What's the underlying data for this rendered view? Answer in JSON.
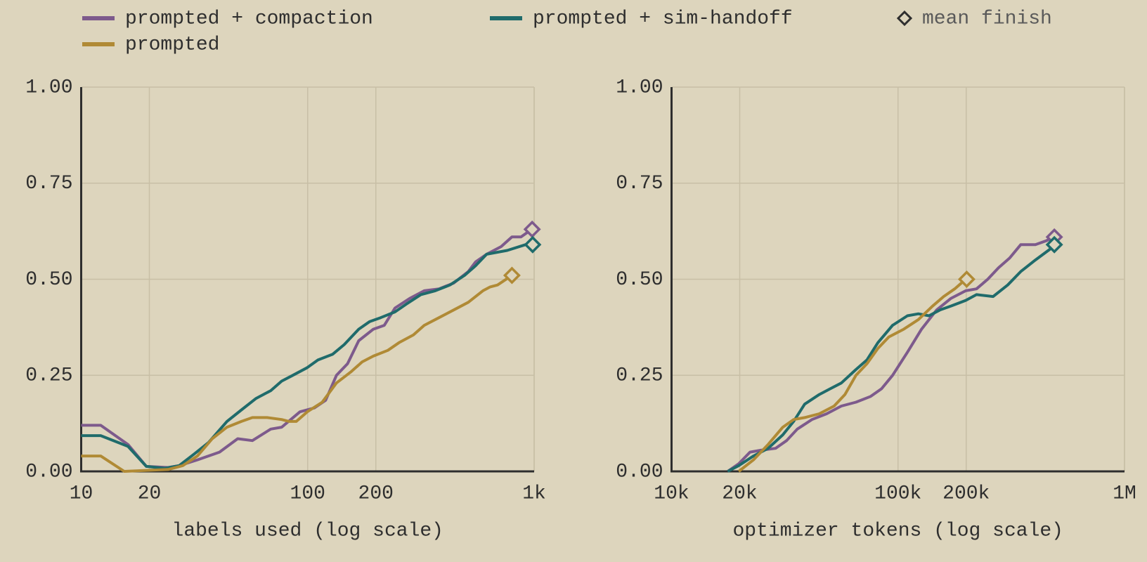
{
  "chart_data": [
    {
      "type": "line",
      "xscale": "log",
      "grid": true,
      "legend": "top",
      "marker_label": "mean finish",
      "xlabel": "labels used (log scale)",
      "xlim": [
        10,
        1000
      ],
      "ylim": [
        0,
        1
      ],
      "xticks": [
        10,
        20,
        100,
        200,
        {
          "value": 1000,
          "label": "1k"
        }
      ],
      "yticks": [
        {
          "value": 0,
          "label": "0.00"
        },
        {
          "value": 0.25,
          "label": "0.25"
        },
        {
          "value": 0.5,
          "label": "0.50"
        },
        {
          "value": 0.75,
          "label": "0.75"
        },
        {
          "value": 1,
          "label": "1.00"
        }
      ],
      "series": [
        {
          "name": "prompted + compaction",
          "color": "#7d5a8c",
          "x": [
            10,
            12.2,
            16.1,
            19.4,
            24.2,
            27.1,
            32.6,
            40.8,
            49.1,
            57,
            68.7,
            76.8,
            92.5,
            107,
            120,
            134,
            150,
            168,
            195,
            218,
            243,
            282,
            327,
            380,
            441,
            512,
            551,
            617,
            715,
            798,
            875,
            977
          ],
          "values": [
            0.12,
            0.12,
            0.07,
            0.013,
            0.01,
            0.015,
            0.03,
            0.05,
            0.085,
            0.08,
            0.11,
            0.115,
            0.155,
            0.165,
            0.185,
            0.25,
            0.28,
            0.34,
            0.37,
            0.38,
            0.425,
            0.45,
            0.47,
            0.475,
            0.49,
            0.52,
            0.545,
            0.565,
            0.585,
            0.61,
            0.61,
            0.63
          ],
          "finish": {
            "x": 980,
            "y": 0.63
          }
        },
        {
          "name": "prompted + sim-handoff",
          "color": "#1f6b6b",
          "x": [
            10,
            12.2,
            16.1,
            19.4,
            23.4,
            27.1,
            31.5,
            36.5,
            44,
            51,
            59.2,
            68.7,
            76.8,
            85.9,
            99.6,
            111,
            129,
            145,
            168,
            188,
            210,
            243,
            272,
            316,
            366,
            425,
            493,
            551,
            617,
            760,
            915,
            985
          ],
          "values": [
            0.093,
            0.093,
            0.065,
            0.013,
            0.008,
            0.015,
            0.045,
            0.075,
            0.13,
            0.16,
            0.19,
            0.21,
            0.235,
            0.25,
            0.27,
            0.29,
            0.305,
            0.33,
            0.37,
            0.39,
            0.4,
            0.415,
            0.435,
            0.46,
            0.47,
            0.485,
            0.51,
            0.535,
            0.565,
            0.575,
            0.59,
            0.595
          ],
          "finish": {
            "x": 985,
            "y": 0.59
          }
        },
        {
          "name": "prompted",
          "color": "#b08a35",
          "x": [
            10,
            12.2,
            15.5,
            24.2,
            28.1,
            32.6,
            37.9,
            44,
            51,
            57,
            66.2,
            76.8,
            82.7,
            89.1,
            99.6,
            116,
            134,
            156,
            174,
            195,
            226,
            253,
            293,
            327,
            380,
            441,
            512,
            594,
            640,
            689,
            798
          ],
          "values": [
            0.04,
            0.04,
            0,
            0.005,
            0.015,
            0.04,
            0.085,
            0.115,
            0.13,
            0.14,
            0.14,
            0.135,
            0.13,
            0.13,
            0.155,
            0.18,
            0.23,
            0.26,
            0.285,
            0.3,
            0.315,
            0.335,
            0.355,
            0.38,
            0.4,
            0.42,
            0.44,
            0.47,
            0.48,
            0.485,
            0.51
          ],
          "finish": {
            "x": 798,
            "y": 0.51
          }
        }
      ]
    },
    {
      "type": "line",
      "xscale": "log",
      "grid": true,
      "xlabel": "optimizer tokens (log scale)",
      "xlim": [
        10000,
        1000000
      ],
      "ylim": [
        0,
        1
      ],
      "xticks": [
        {
          "value": 10000,
          "label": "10k"
        },
        {
          "value": 20000,
          "label": "20k"
        },
        {
          "value": 100000,
          "label": "100k"
        },
        {
          "value": 200000,
          "label": "200k"
        },
        {
          "value": 1000000,
          "label": "1M"
        }
      ],
      "yticks": [
        {
          "value": 0,
          "label": "0.00"
        },
        {
          "value": 0.25,
          "label": "0.25"
        },
        {
          "value": 0.5,
          "label": "0.50"
        },
        {
          "value": 0.75,
          "label": "0.75"
        },
        {
          "value": 1,
          "label": "1.00"
        }
      ],
      "series": [
        {
          "name": "prompted + compaction",
          "color": "#7d5a8c",
          "x": [
            17700,
            19800,
            22200,
            24800,
            28800,
            32200,
            35900,
            41700,
            48400,
            56200,
            65200,
            75700,
            84600,
            94600,
            110000,
            127000,
            148000,
            171000,
            199000,
            222000,
            249000,
            278000,
            311000,
            348000,
            404000,
            451000,
            486000
          ],
          "values": [
            0,
            0.02,
            0.05,
            0.055,
            0.06,
            0.08,
            0.11,
            0.135,
            0.15,
            0.17,
            0.18,
            0.195,
            0.215,
            0.25,
            0.31,
            0.37,
            0.42,
            0.45,
            0.47,
            0.475,
            0.5,
            0.53,
            0.555,
            0.59,
            0.59,
            0.6,
            0.61
          ],
          "finish": {
            "x": 490000,
            "y": 0.61
          }
        },
        {
          "name": "prompted + sim-handoff",
          "color": "#1f6b6b",
          "x": [
            17700,
            19800,
            23000,
            26700,
            31000,
            34600,
            38700,
            44900,
            50200,
            56200,
            65200,
            72900,
            81500,
            94600,
            110000,
            123000,
            137000,
            153000,
            171000,
            199000,
            222000,
            263000,
            305000,
            348000,
            404000,
            486000
          ],
          "values": [
            0,
            0.015,
            0.04,
            0.06,
            0.095,
            0.13,
            0.175,
            0.2,
            0.215,
            0.23,
            0.265,
            0.29,
            0.335,
            0.38,
            0.405,
            0.41,
            0.405,
            0.42,
            0.43,
            0.445,
            0.46,
            0.455,
            0.485,
            0.52,
            0.55,
            0.585
          ],
          "finish": {
            "x": 490000,
            "y": 0.59
          }
        },
        {
          "name": "prompted",
          "color": "#b08a35",
          "x": [
            19800,
            23000,
            26700,
            31000,
            34600,
            38700,
            44900,
            52200,
            58300,
            65200,
            72900,
            81500,
            91100,
            106000,
            123000,
            142000,
            159000,
            178000,
            199000
          ],
          "values": [
            0,
            0.03,
            0.07,
            0.115,
            0.135,
            0.14,
            0.15,
            0.17,
            0.2,
            0.25,
            0.28,
            0.32,
            0.35,
            0.37,
            0.395,
            0.43,
            0.455,
            0.475,
            0.5
          ],
          "finish": {
            "x": 201000,
            "y": 0.5
          }
        }
      ]
    }
  ]
}
